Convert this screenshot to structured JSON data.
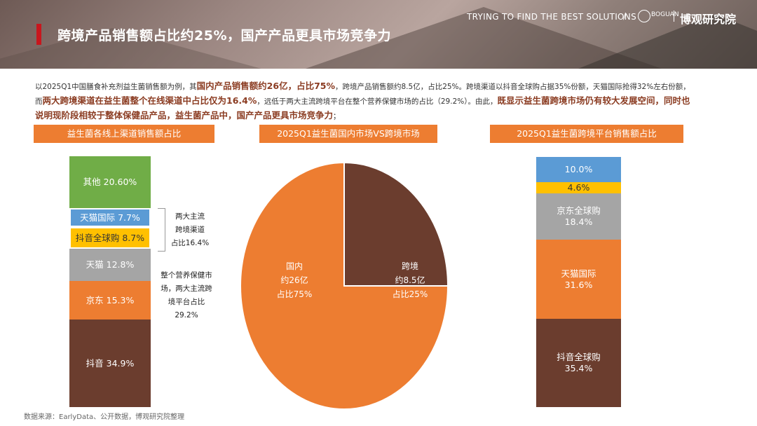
{
  "header": {
    "title": "跨境产品销售额占比约25%，国产产品更具市场竞争力",
    "slogan": "TRYING TO FIND THE BEST SOLUTIONS",
    "separator": "/",
    "logo_mark": "BOGUAN",
    "brand": "博观研究院"
  },
  "description": {
    "p1": "以2025Q1中国膳食补充剂益生菌销售额为例，其",
    "h1": "国内产品销售额约26亿，占比75%",
    "p2": "，跨境产品销售额约8.5亿，占比25%。跨境渠道以抖音全球购占据35%份额，天猫国际抢得32%左右份额，而",
    "h2": "两大跨境渠道在益生菌整个在线渠道中占比仅为16.4%",
    "p3": "，远低于两大主流跨境平台在整个营养保健市场的占比（29.2%）。由此，",
    "h3": "既显示益生菌跨境市场仍有较大发展空间，同时也说明现阶段相较于整体保健品产品，益生菌产品中，国产产品更具市场竞争力",
    "p4": "；"
  },
  "colors": {
    "accent": "#ed7d31",
    "brown": "#6b3d2e",
    "gray": "#a5a5a5",
    "yellow": "#ffc000",
    "blue": "#5b9bd5",
    "green": "#70ad47",
    "title_red": "#c8161d",
    "highlight": "#8b3c22"
  },
  "annotations": {
    "bracket1": [
      "两大主流",
      "跨境渠道",
      "占比16.4%"
    ],
    "note2": [
      "整个营养保健市",
      "场，两大主流跨",
      "境平台占比",
      "29.2%"
    ]
  },
  "chart_data": [
    {
      "type": "bar",
      "stacked": true,
      "title": "益生菌各线上渠道销售额占比",
      "unit": "%",
      "series": [
        {
          "name": "抖音",
          "value": 34.9,
          "label": "抖音 34.9%",
          "color": "#6b3d2e"
        },
        {
          "name": "京东",
          "value": 15.3,
          "label": "京东 15.3%",
          "color": "#ed7d31"
        },
        {
          "name": "天猫",
          "value": 12.8,
          "label": "天猫 12.8%",
          "color": "#a5a5a5"
        },
        {
          "name": "抖音全球购",
          "value": 8.7,
          "label": "抖音全球购 8.7%",
          "color": "#ffc000"
        },
        {
          "name": "天猫国际",
          "value": 7.7,
          "label": "天猫国际 7.7%",
          "color": "#5b9bd5"
        },
        {
          "name": "其他",
          "value": 20.6,
          "label": "其他 20.60%",
          "color": "#70ad47"
        }
      ]
    },
    {
      "type": "pie",
      "title": "2025Q1益生菌国内市场VS跨境市场",
      "slices": [
        {
          "name": "国内",
          "amount": "约26亿",
          "share": "占比75%",
          "value": 75,
          "color": "#ed7d31"
        },
        {
          "name": "跨境",
          "amount": "约8.5亿",
          "share": "占比25%",
          "value": 25,
          "color": "#6b3d2e"
        }
      ]
    },
    {
      "type": "bar",
      "stacked": true,
      "title": "2025Q1益生菌跨境平台销售额占比",
      "unit": "%",
      "series": [
        {
          "name": "抖音全球购",
          "value": 35.4,
          "label": "35.4%",
          "color": "#6b3d2e"
        },
        {
          "name": "天猫国际",
          "value": 31.6,
          "label": "31.6%",
          "color": "#ed7d31"
        },
        {
          "name": "京东全球购",
          "value": 18.4,
          "label": "18.4%",
          "color": "#a5a5a5"
        },
        {
          "name": "",
          "value": 4.6,
          "label": "4.6%",
          "color": "#ffc000"
        },
        {
          "name": "",
          "value": 10.0,
          "label": "10.0%",
          "color": "#5b9bd5"
        }
      ]
    }
  ],
  "source": "数据来源：EarlyData、公开数据，博观研究院整理"
}
